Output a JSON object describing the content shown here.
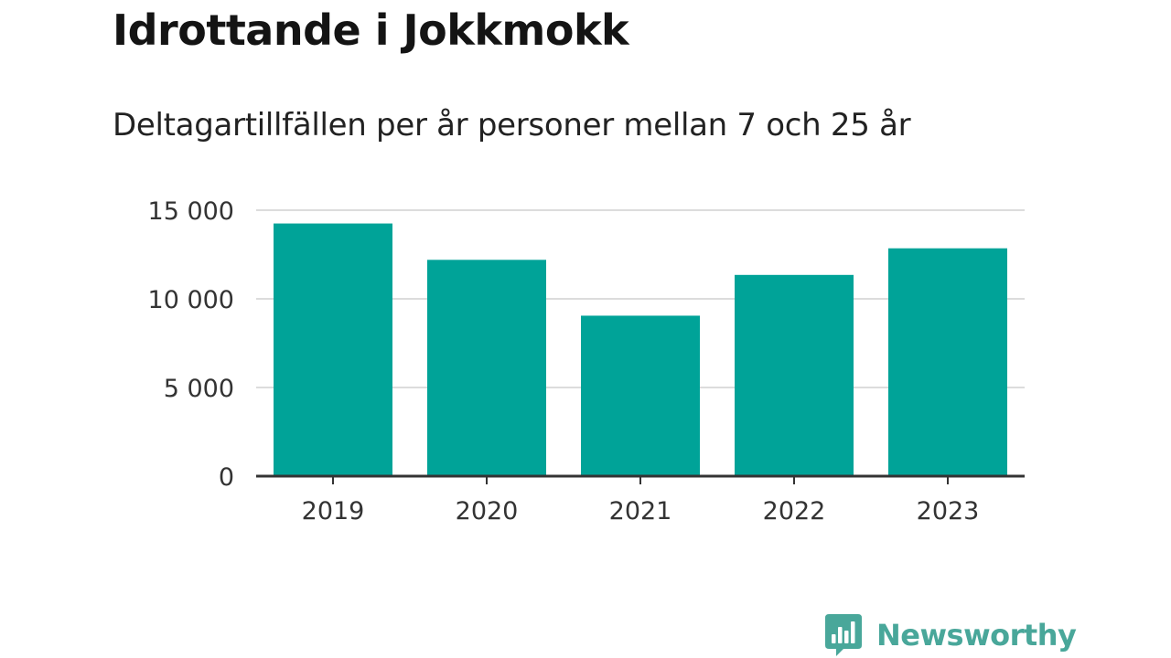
{
  "title": "Idrottande i Jokkmokk",
  "subtitle": "Deltagartillfällen per år personer mellan 7 och 25 år",
  "brand": {
    "name": "Newsworthy",
    "icon": "newsworthy-logo-icon",
    "color": "#49a79a"
  },
  "colors": {
    "bar": "#00a398",
    "gridline": "#dcdcdc",
    "axis": "#333333"
  },
  "chart_data": {
    "type": "bar",
    "categories": [
      "2019",
      "2020",
      "2021",
      "2022",
      "2023"
    ],
    "values": [
      14250,
      12200,
      9050,
      11350,
      12850
    ],
    "ylim": [
      0,
      15000
    ],
    "yticks": [
      0,
      5000,
      10000,
      15000
    ],
    "ytick_labels": [
      "0",
      "5 000",
      "10 000",
      "15 000"
    ],
    "grid": true,
    "legend": "none"
  }
}
